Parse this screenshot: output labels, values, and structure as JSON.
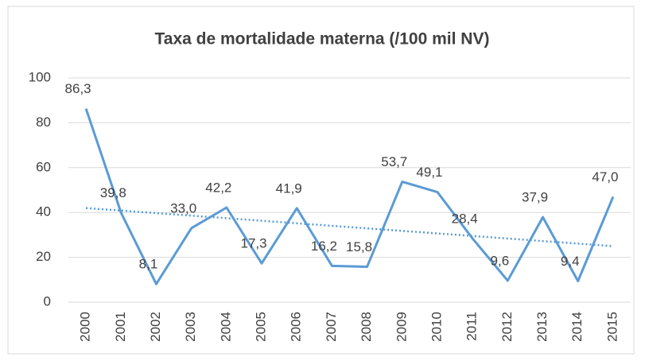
{
  "chart_data": {
    "type": "line",
    "title": "Taxa de mortalidade materna (/100 mil NV)",
    "categories": [
      "2000",
      "2001",
      "2002",
      "2003",
      "2004",
      "2005",
      "2006",
      "2007",
      "2008",
      "2009",
      "2010",
      "2011",
      "2012",
      "2013",
      "2014",
      "2015"
    ],
    "series": [
      {
        "name": "Taxa de mortalidade materna",
        "color": "#5b9bd5",
        "values": [
          86.3,
          39.8,
          8.1,
          33.0,
          42.2,
          17.3,
          41.9,
          16.2,
          15.8,
          53.7,
          49.1,
          28.4,
          9.6,
          37.9,
          9.4,
          47.0
        ],
        "value_labels": [
          "86,3",
          "39,8",
          "8,1",
          "33,0",
          "42,2",
          "17,3",
          "41,9",
          "16,2",
          "15,8",
          "53,7",
          "49,1",
          "28,4",
          "9,6",
          "37,9",
          "9,4",
          "47,0"
        ]
      }
    ],
    "trendline": "linear",
    "ylim": [
      0,
      100
    ],
    "yticks": [
      0,
      20,
      40,
      60,
      80,
      100
    ],
    "grid": true
  }
}
